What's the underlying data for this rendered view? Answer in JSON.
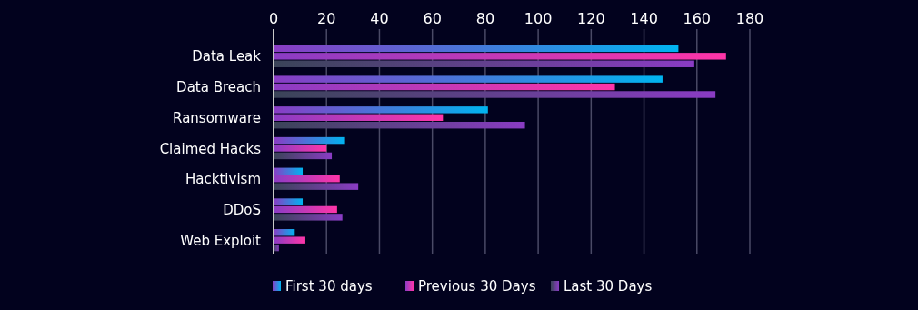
{
  "chart_data": {
    "type": "bar",
    "orientation": "horizontal",
    "categories": [
      "Data Leak",
      "Data Breach",
      "Ransomware",
      "Claimed Hacks",
      "Hacktivism",
      "DDoS",
      "Web Exploit"
    ],
    "series": [
      {
        "name": "First 30 days",
        "color": "#00b4f0",
        "values": [
          153,
          147,
          81,
          27,
          11,
          11,
          8
        ]
      },
      {
        "name": "Previous 30 Days",
        "color": "#ff35a8",
        "values": [
          171,
          129,
          64,
          20,
          25,
          24,
          12
        ]
      },
      {
        "name": "Last 30 Days",
        "color": "#8a3cc4",
        "values": [
          159,
          167,
          95,
          22,
          32,
          26,
          2
        ]
      }
    ],
    "xlim": [
      0,
      180
    ],
    "xticks": [
      0,
      20,
      40,
      60,
      80,
      100,
      120,
      140,
      160,
      180
    ],
    "grid": "x",
    "legend": "bottom"
  }
}
